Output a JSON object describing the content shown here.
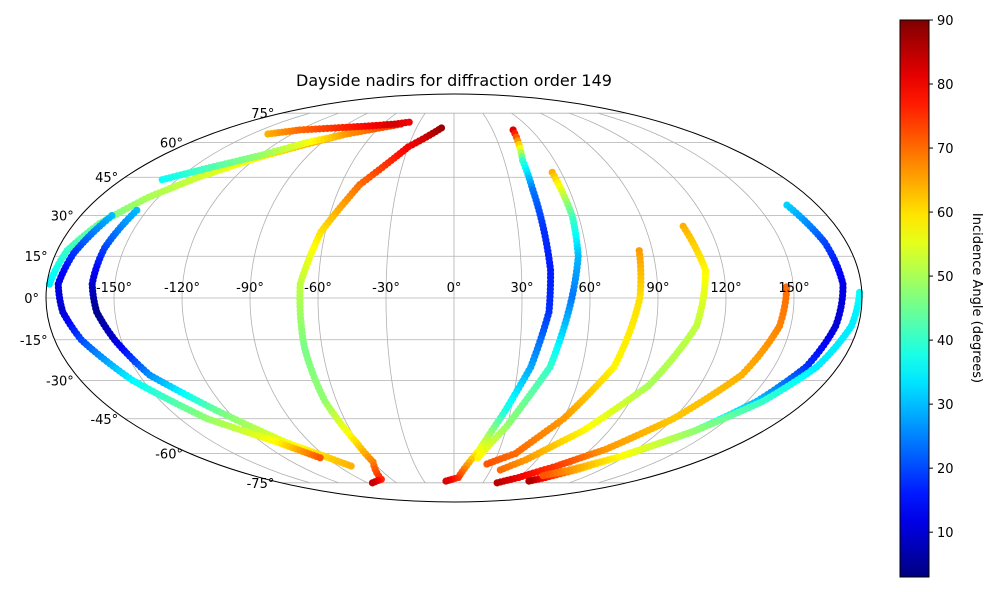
{
  "chart_data": {
    "type": "scatter",
    "projection": "mollweide",
    "title": "Dayside nadirs for diffraction order 149",
    "colorbar": {
      "label": "Incidence Angle (degrees)",
      "min": 3,
      "max": 90,
      "ticks": [
        "10",
        "20",
        "30",
        "40",
        "50",
        "60",
        "70",
        "80",
        "90"
      ],
      "colormap": "jet"
    },
    "lon_ticks": [
      "-150°",
      "-120°",
      "-90°",
      "-60°",
      "-30°",
      "0°",
      "30°",
      "60°",
      "90°",
      "120°",
      "150°"
    ],
    "lat_ticks": [
      "75°",
      "60°",
      "45°",
      "30°",
      "15°",
      "0°",
      "-15°",
      "-30°",
      "-45°",
      "-60°",
      "-75°"
    ],
    "grid": true,
    "tracks": [
      {
        "points": [
          [
            -178.9,
            5,
            34
          ],
          [
            -175.5,
            17,
            40
          ],
          [
            -168,
            27,
            45
          ],
          [
            -155,
            37,
            50
          ],
          [
            -140,
            45,
            53
          ],
          [
            -120,
            53,
            58
          ],
          [
            -100,
            59,
            63
          ],
          [
            -80,
            64,
            67
          ],
          [
            -60,
            67,
            72
          ],
          [
            -45,
            69,
            76
          ]
        ]
      },
      {
        "points": [
          [
            -158,
            44,
            36
          ],
          [
            -140,
            49,
            42
          ],
          [
            -120,
            54,
            48
          ],
          [
            -100,
            60,
            56
          ],
          [
            -80,
            64,
            66
          ],
          [
            -60,
            67,
            72
          ],
          [
            -45,
            69,
            76
          ]
        ]
      },
      {
        "points": [
          [
            -138,
            64,
            64
          ],
          [
            -120,
            66,
            70
          ],
          [
            -95,
            67,
            75
          ],
          [
            -70,
            68,
            79
          ],
          [
            -50,
            69,
            83
          ],
          [
            -39,
            70,
            80
          ]
        ]
      },
      {
        "points": [
          [
            -155,
            32,
            30
          ],
          [
            -159,
            18,
            20
          ],
          [
            -160,
            5,
            10
          ],
          [
            -158,
            -5,
            4
          ],
          [
            -153,
            -15,
            10
          ],
          [
            -145,
            -28,
            26
          ],
          [
            -125,
            -42,
            45
          ],
          [
            -105,
            -55,
            56
          ],
          [
            -80,
            -66,
            64
          ]
        ]
      },
      {
        "points": [
          [
            -165,
            30,
            30
          ],
          [
            -172,
            16,
            18
          ],
          [
            -175,
            5,
            12
          ],
          [
            -173,
            -5,
            10
          ],
          [
            -168,
            -15,
            20
          ],
          [
            -155,
            -30,
            35
          ],
          [
            -135,
            -45,
            48
          ],
          [
            -110,
            -55,
            58
          ],
          [
            -95,
            -62,
            72
          ]
        ]
      },
      {
        "points": [
          [
            -10,
            67,
            88
          ],
          [
            -30,
            58,
            80
          ],
          [
            -50,
            42,
            70
          ],
          [
            -62,
            24,
            60
          ],
          [
            -68,
            5,
            52
          ],
          [
            -68,
            -18,
            46
          ],
          [
            -66,
            -38,
            48
          ],
          [
            -61,
            -55,
            60
          ],
          [
            -60,
            -64,
            68
          ],
          [
            -70,
            -73,
            76
          ],
          [
            -85,
            -75,
            84
          ]
        ]
      },
      {
        "points": [
          [
            46,
            66,
            82
          ],
          [
            41,
            52,
            40
          ],
          [
            41,
            40,
            24
          ],
          [
            42,
            25,
            18
          ],
          [
            43,
            10,
            16
          ],
          [
            42,
            -5,
            18
          ],
          [
            36,
            -25,
            28
          ],
          [
            27,
            -42,
            38
          ],
          [
            17,
            -58,
            56
          ],
          [
            4,
            -72,
            74
          ],
          [
            -8,
            -74,
            82
          ]
        ]
      },
      {
        "points": [
          [
            55,
            47,
            64
          ],
          [
            57,
            30,
            42
          ],
          [
            56,
            15,
            30
          ],
          [
            52,
            0,
            24
          ],
          [
            45,
            -25,
            40
          ],
          [
            30,
            -48,
            48
          ],
          [
            17,
            -62,
            58
          ]
        ]
      },
      {
        "points": [
          [
            84,
            17,
            66
          ],
          [
            82,
            0,
            60
          ],
          [
            75,
            -25,
            58
          ],
          [
            60,
            -45,
            66
          ],
          [
            42,
            -60,
            70
          ],
          [
            25,
            -65,
            72
          ]
        ]
      },
      {
        "points": [
          [
            108,
            26,
            64
          ],
          [
            112,
            10,
            58
          ],
          [
            108,
            -10,
            52
          ],
          [
            95,
            -32,
            50
          ],
          [
            75,
            -50,
            58
          ],
          [
            52,
            -63,
            66
          ],
          [
            38,
            -68,
            70
          ]
        ]
      },
      {
        "points": [
          [
            147,
            4,
            70
          ],
          [
            145,
            -10,
            68
          ],
          [
            137,
            -28,
            64
          ],
          [
            120,
            -45,
            62
          ],
          [
            100,
            -58,
            66
          ],
          [
            80,
            -66,
            74
          ],
          [
            60,
            -72,
            80
          ],
          [
            45,
            -75,
            85
          ]
        ]
      },
      {
        "points": [
          [
            165,
            34,
            32
          ],
          [
            170,
            20,
            20
          ],
          [
            172,
            5,
            12
          ],
          [
            170,
            -10,
            10
          ],
          [
            165,
            -25,
            18
          ],
          [
            155,
            -38,
            30
          ],
          [
            140,
            -50,
            40
          ],
          [
            120,
            -60,
            52
          ],
          [
            100,
            -68,
            64
          ],
          [
            85,
            -72,
            78
          ],
          [
            75,
            -74,
            86
          ]
        ]
      },
      {
        "points": [
          [
            179,
            2,
            36
          ],
          [
            177,
            -10,
            34
          ],
          [
            170,
            -25,
            34
          ],
          [
            158,
            -38,
            40
          ],
          [
            140,
            -50,
            48
          ],
          [
            115,
            -62,
            58
          ],
          [
            95,
            -68,
            66
          ],
          [
            80,
            -71,
            72
          ]
        ]
      }
    ]
  }
}
